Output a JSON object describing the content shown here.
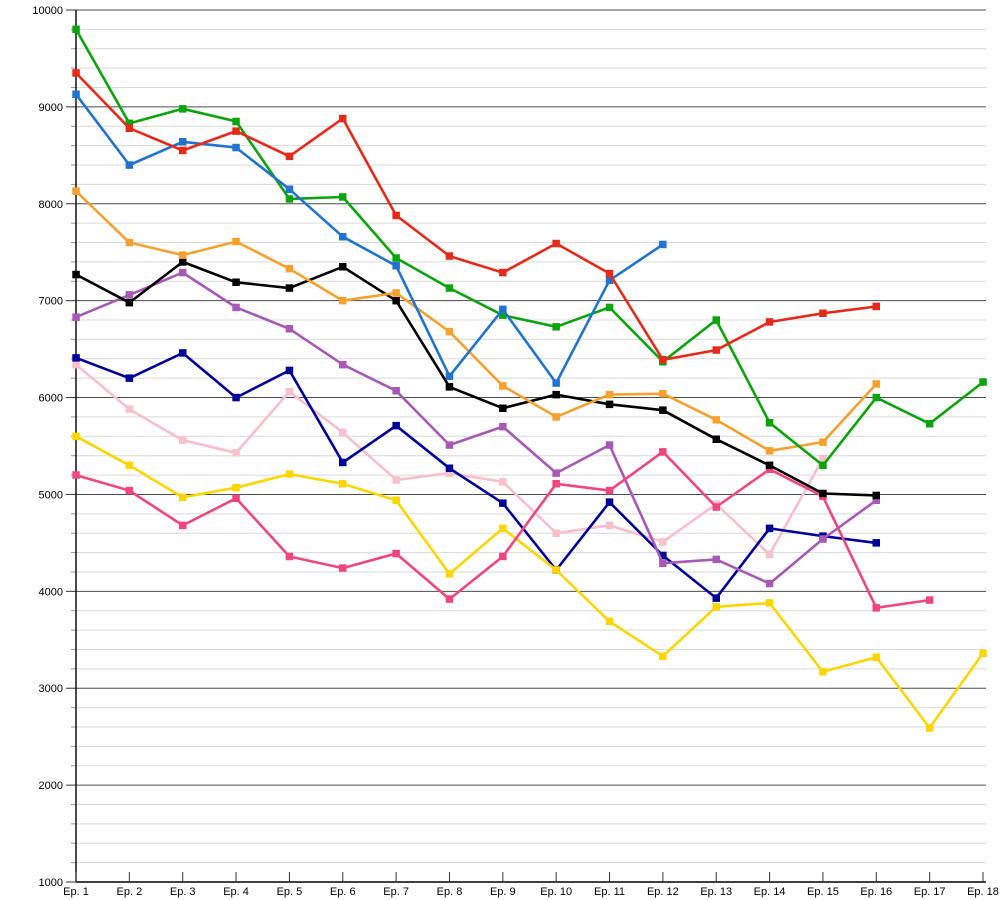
{
  "chart_data": {
    "type": "line",
    "title": "",
    "xlabel": "",
    "ylabel": "",
    "categories": [
      "Ep. 1",
      "Ep. 2",
      "Ep. 3",
      "Ep. 4",
      "Ep. 5",
      "Ep. 6",
      "Ep. 7",
      "Ep. 8",
      "Ep. 9",
      "Ep. 10",
      "Ep. 11",
      "Ep. 12",
      "Ep. 13",
      "Ep. 14",
      "Ep. 15",
      "Ep. 16",
      "Ep. 17",
      "Ep. 18"
    ],
    "ylim": [
      1000,
      10000
    ],
    "y_major_step": 1000,
    "y_minor_step": 200,
    "y_tick_labels": [
      "1000",
      "2000",
      "3000",
      "4000",
      "5000",
      "6000",
      "7000",
      "8000",
      "9000",
      "10000"
    ],
    "grid": true,
    "legend": "none",
    "marker": "square",
    "series": [
      {
        "name": "light-pink",
        "color": "#f8c0cc",
        "values": [
          6340,
          5880,
          5560,
          5430,
          6060,
          5640,
          5150,
          5220,
          5130,
          4600,
          4680,
          4510,
          4900,
          4380,
          5370
        ]
      },
      {
        "name": "navy",
        "color": "#000099",
        "values": [
          6410,
          6200,
          6460,
          6000,
          6280,
          5330,
          5710,
          5270,
          4910,
          4220,
          4920,
          4370,
          3930,
          4650,
          4570,
          4500
        ]
      },
      {
        "name": "yellow",
        "color": "#fdd600",
        "values": [
          5600,
          5300,
          4970,
          5070,
          5210,
          5110,
          4940,
          4180,
          4650,
          4220,
          3690,
          3330,
          3840,
          3880,
          3170,
          3320,
          2590,
          3360
        ]
      },
      {
        "name": "purple",
        "color": "#a75ab5",
        "values": [
          6830,
          7060,
          7290,
          6930,
          6710,
          6340,
          6070,
          5510,
          5700,
          5220,
          5510,
          4290,
          4330,
          4080,
          4540,
          4940
        ]
      },
      {
        "name": "deep-pink",
        "color": "#ef4680",
        "values": [
          5200,
          5040,
          4680,
          4960,
          4360,
          4240,
          4390,
          3920,
          4360,
          5110,
          5040,
          5440,
          4870,
          5260,
          4980,
          3830,
          3910
        ]
      },
      {
        "name": "black",
        "color": "#000000",
        "values": [
          7270,
          6980,
          7400,
          7190,
          7130,
          7350,
          7000,
          6110,
          5890,
          6030,
          5930,
          5870,
          5570,
          5300,
          5010,
          4990
        ]
      },
      {
        "name": "orange",
        "color": "#f6a12f",
        "values": [
          8130,
          7600,
          7470,
          7610,
          7330,
          7000,
          7080,
          6680,
          6120,
          5800,
          6030,
          6040,
          5770,
          5450,
          5540,
          6140
        ]
      },
      {
        "name": "green",
        "color": "#0ca40c",
        "values": [
          9800,
          8830,
          8980,
          8850,
          8050,
          8070,
          7440,
          7130,
          6850,
          6730,
          6930,
          6370,
          6800,
          5740,
          5300,
          6000,
          5730,
          6160
        ]
      },
      {
        "name": "blue",
        "color": "#2173cf",
        "values": [
          9130,
          8400,
          8640,
          8580,
          8150,
          7660,
          7360,
          6220,
          6910,
          6150,
          7210,
          7580
        ]
      },
      {
        "name": "red",
        "color": "#e62a1a",
        "values": [
          9350,
          8780,
          8550,
          8750,
          8490,
          8880,
          7880,
          7460,
          7290,
          7590,
          7280,
          6390,
          6490,
          6780,
          6870,
          6940
        ]
      }
    ],
    "colors": {
      "grid_major": "#4d4d4d",
      "grid_minor": "#d9d9d9",
      "axis": "#000000"
    }
  }
}
